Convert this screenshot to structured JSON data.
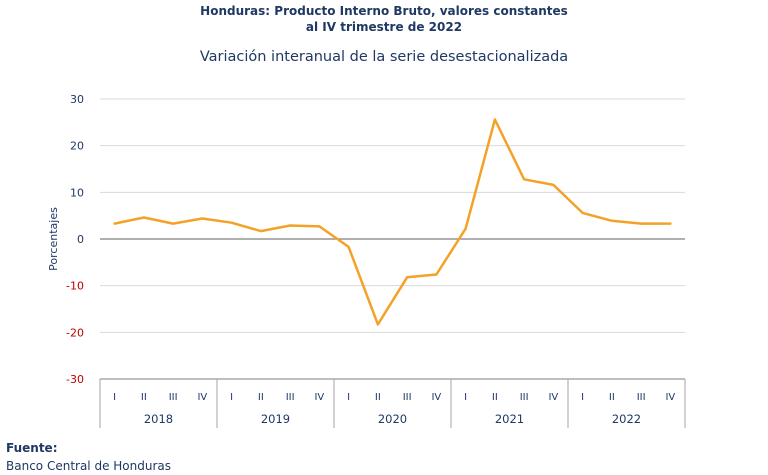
{
  "header": {
    "title_line1": "Honduras: Producto Interno Bruto, valores constantes",
    "title_line2": "al IV trimestre de 2022",
    "subtitle": "Variación interanual de la serie desestacionalizada"
  },
  "footer": {
    "source_label": "Fuente:",
    "source_value": "Banco Central de Honduras"
  },
  "colors": {
    "line": "#f4a128",
    "negative_tick": "#c00000",
    "text": "#1f3864",
    "grid": "#d9d9d9",
    "zero_line": "#7f7f7f"
  },
  "chart_data": {
    "type": "line",
    "title": "Variación interanual de la serie desestacionalizada",
    "ylabel": "Porcentajes",
    "xlabel": "",
    "ylim": [
      -30,
      30
    ],
    "yticks": [
      30,
      20,
      10,
      0,
      -10,
      -20,
      -30
    ],
    "ytick_labels": [
      "30",
      "20",
      "10",
      "0",
      "-10",
      "-20",
      "-30"
    ],
    "grid": true,
    "legend": "none",
    "quarters": [
      "I",
      "II",
      "III",
      "IV"
    ],
    "years": [
      "2018",
      "2019",
      "2020",
      "2021",
      "2022"
    ],
    "series": [
      {
        "values": [
          3.3,
          4.6,
          3.3,
          4.4,
          3.5,
          1.7,
          2.9,
          2.7,
          -1.7,
          -18.3,
          -8.2,
          -7.6,
          2.2,
          25.6,
          12.8,
          11.6,
          5.6,
          3.9,
          3.3,
          3.3
        ]
      }
    ]
  }
}
